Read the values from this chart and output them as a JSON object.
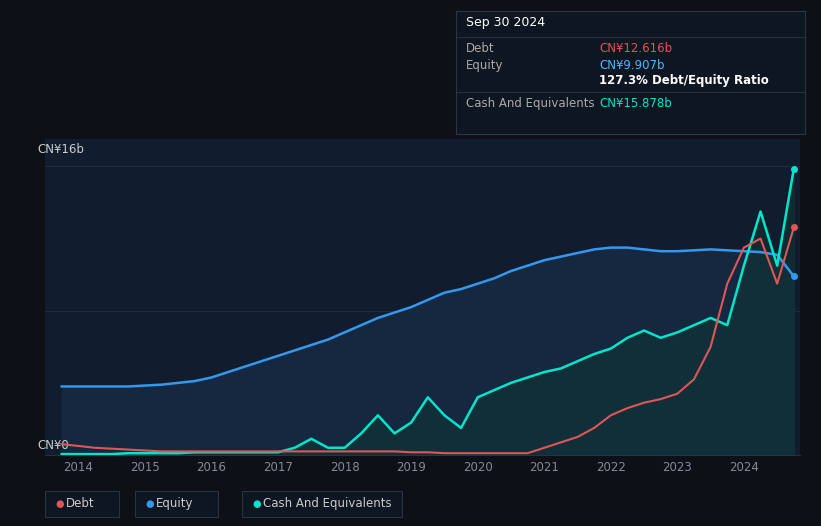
{
  "background_color": "#0d1117",
  "plot_bg_color": "#111d2e",
  "title_box": {
    "date": "Sep 30 2024",
    "debt_label": "Debt",
    "debt_value": "CN¥12.616b",
    "equity_label": "Equity",
    "equity_value": "CN¥9.907b",
    "ratio_text": "127.3% Debt/Equity Ratio",
    "cash_label": "Cash And Equivalents",
    "cash_value": "CN¥15.878b",
    "debt_color": "#e05555",
    "equity_color": "#4db8ff",
    "cash_color": "#00e5cc",
    "ratio_color": "#ffffff",
    "label_color": "#aaaaaa",
    "date_color": "#ffffff",
    "box_bg": "#0e1621",
    "box_border": "#2a3545"
  },
  "y_label_top": "CN¥16b",
  "y_label_bottom": "CN¥0",
  "debt_color": "#e05555",
  "equity_color": "#3399ee",
  "cash_color": "#00e5cc",
  "equity_fill_top": "#1e3d6e",
  "equity_fill_bot": "#0d2040",
  "ylim": [
    0,
    17.5
  ],
  "xlim_start": 2013.5,
  "xlim_end": 2024.85,
  "legend": {
    "debt": "Debt",
    "equity": "Equity",
    "cash": "Cash And Equivalents"
  },
  "years": [
    2013.75,
    2014.0,
    2014.25,
    2014.5,
    2014.75,
    2015.0,
    2015.25,
    2015.5,
    2015.75,
    2016.0,
    2016.25,
    2016.5,
    2016.75,
    2017.0,
    2017.25,
    2017.5,
    2017.75,
    2018.0,
    2018.25,
    2018.5,
    2018.75,
    2019.0,
    2019.25,
    2019.5,
    2019.75,
    2020.0,
    2020.25,
    2020.5,
    2020.75,
    2021.0,
    2021.25,
    2021.5,
    2021.75,
    2022.0,
    2022.25,
    2022.5,
    2022.75,
    2023.0,
    2023.25,
    2023.5,
    2023.75,
    2024.0,
    2024.25,
    2024.5,
    2024.75
  ],
  "equity": [
    3.8,
    3.8,
    3.8,
    3.8,
    3.8,
    3.85,
    3.9,
    4.0,
    4.1,
    4.3,
    4.6,
    4.9,
    5.2,
    5.5,
    5.8,
    6.1,
    6.4,
    6.8,
    7.2,
    7.6,
    7.9,
    8.2,
    8.6,
    9.0,
    9.2,
    9.5,
    9.8,
    10.2,
    10.5,
    10.8,
    11.0,
    11.2,
    11.4,
    11.5,
    11.5,
    11.4,
    11.3,
    11.3,
    11.35,
    11.4,
    11.35,
    11.3,
    11.25,
    11.1,
    9.907
  ],
  "debt": [
    0.6,
    0.5,
    0.4,
    0.35,
    0.3,
    0.25,
    0.2,
    0.2,
    0.2,
    0.2,
    0.2,
    0.2,
    0.2,
    0.2,
    0.2,
    0.2,
    0.2,
    0.2,
    0.2,
    0.2,
    0.2,
    0.15,
    0.15,
    0.1,
    0.1,
    0.1,
    0.1,
    0.1,
    0.1,
    0.4,
    0.7,
    1.0,
    1.5,
    2.2,
    2.6,
    2.9,
    3.1,
    3.4,
    4.2,
    6.0,
    9.5,
    11.5,
    12.0,
    9.5,
    12.616
  ],
  "cash": [
    0.05,
    0.05,
    0.05,
    0.05,
    0.1,
    0.1,
    0.1,
    0.1,
    0.15,
    0.15,
    0.15,
    0.15,
    0.15,
    0.15,
    0.4,
    0.9,
    0.4,
    0.4,
    1.2,
    2.2,
    1.2,
    1.8,
    3.2,
    2.2,
    1.5,
    3.2,
    3.6,
    4.0,
    4.3,
    4.6,
    4.8,
    5.2,
    5.6,
    5.9,
    6.5,
    6.9,
    6.5,
    6.8,
    7.2,
    7.6,
    7.2,
    10.5,
    13.5,
    10.5,
    15.878
  ]
}
